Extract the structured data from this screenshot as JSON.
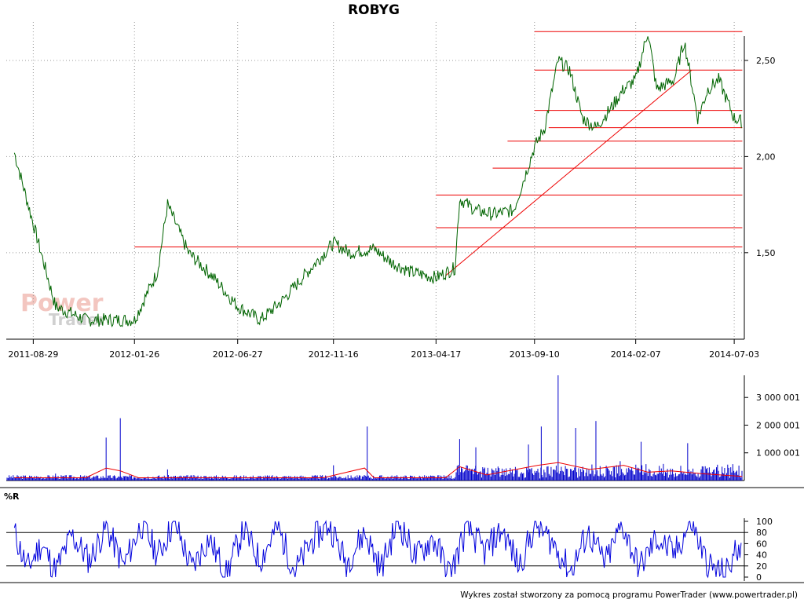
{
  "chart_data": [
    {
      "type": "line",
      "panel": "price",
      "title": "ROBYG",
      "y_tick_labels": [
        "2,50",
        "2,00",
        "1,50"
      ],
      "y_ticks": [
        2.5,
        2.0,
        1.5
      ],
      "ylim": [
        1.05,
        2.7
      ],
      "x_tick_labels": [
        "2011-08-29",
        "2012-01-26",
        "2012-06-27",
        "2012-11-16",
        "2013-04-17",
        "2013-09-10",
        "2014-02-07",
        "2014-07-03"
      ],
      "grid": true,
      "series": [
        {
          "x": [
            "2011-08-01",
            "2011-08-29",
            "2011-10-01",
            "2011-11-15",
            "2012-01-26",
            "2012-02-29",
            "2012-03-15",
            "2012-04-15",
            "2012-05-20",
            "2012-06-27",
            "2012-07-31",
            "2012-09-01",
            "2012-10-01",
            "2012-11-16",
            "2012-12-10",
            "2013-01-15",
            "2013-02-10",
            "2013-03-10",
            "2013-04-17",
            "2013-05-15",
            "2013-05-22",
            "2013-06-15",
            "2013-07-10",
            "2013-08-10",
            "2013-09-10",
            "2013-09-25",
            "2013-10-15",
            "2013-11-01",
            "2013-11-20",
            "2013-12-10",
            "2014-01-01",
            "2014-01-20",
            "2014-02-07",
            "2014-02-25",
            "2014-03-10",
            "2014-04-05",
            "2014-04-20",
            "2014-05-10",
            "2014-05-25",
            "2014-06-10",
            "2014-07-03",
            "2014-07-15"
          ],
          "values": [
            2.02,
            1.65,
            1.22,
            1.15,
            1.15,
            1.4,
            1.75,
            1.5,
            1.38,
            1.22,
            1.15,
            1.25,
            1.37,
            1.55,
            1.5,
            1.52,
            1.45,
            1.4,
            1.37,
            1.42,
            1.78,
            1.72,
            1.7,
            1.72,
            2.05,
            2.15,
            2.5,
            2.45,
            2.2,
            2.15,
            2.25,
            2.35,
            2.4,
            2.65,
            2.35,
            2.4,
            2.6,
            2.2,
            2.35,
            2.4,
            2.2,
            2.18
          ]
        }
      ],
      "horizontal_levels": [
        {
          "value": 2.65,
          "from": "2013-09-10",
          "to": "2014-07-15"
        },
        {
          "value": 2.45,
          "from": "2013-09-10",
          "to": "2014-07-15"
        },
        {
          "value": 2.24,
          "from": "2013-09-10",
          "to": "2014-07-15"
        },
        {
          "value": 2.15,
          "from": "2013-10-01",
          "to": "2014-07-15"
        },
        {
          "value": 2.08,
          "from": "2013-08-01",
          "to": "2014-07-15"
        },
        {
          "value": 1.94,
          "from": "2013-07-10",
          "to": "2014-07-15"
        },
        {
          "value": 1.8,
          "from": "2013-04-17",
          "to": "2014-07-15"
        },
        {
          "value": 1.63,
          "from": "2013-04-17",
          "to": "2014-07-15"
        },
        {
          "value": 1.53,
          "from": "2012-01-26",
          "to": "2014-07-15"
        }
      ],
      "trend_line": {
        "from": [
          "2013-05-01",
          1.38
        ],
        "to": [
          "2014-05-01",
          2.45
        ]
      }
    },
    {
      "type": "bar",
      "panel": "volume",
      "y_tick_labels": [
        "3 000 001",
        "2 000 001",
        "1 000 001"
      ],
      "y_ticks": [
        3000001,
        2000001,
        1000001
      ],
      "ylim": [
        0,
        3800000
      ],
      "series": [
        {
          "x": [
            "2011-10-01",
            "2011-12-15",
            "2012-01-05",
            "2012-03-15",
            "2012-05-20",
            "2012-11-16",
            "2013-01-05",
            "2013-05-22",
            "2013-06-15",
            "2013-09-01",
            "2013-09-20",
            "2013-10-15",
            "2013-11-10",
            "2013-12-10",
            "2014-01-15",
            "2014-02-15",
            "2014-03-20",
            "2014-04-25",
            "2014-06-15"
          ],
          "values": [
            250000,
            1550000,
            2250000,
            400000,
            100000,
            550000,
            1950000,
            1500000,
            1200000,
            1300000,
            1950000,
            3800000,
            1900000,
            2150000,
            700000,
            1400000,
            600000,
            1350000,
            500000
          ]
        },
        {
          "x": [
            "2011-08-01",
            "2011-11-15",
            "2011-12-15",
            "2012-01-05",
            "2012-02-01",
            "2012-05-01",
            "2012-11-01",
            "2013-01-01",
            "2013-01-15",
            "2013-05-01",
            "2013-05-22",
            "2013-07-01",
            "2013-09-15",
            "2013-10-15",
            "2013-12-01",
            "2014-01-20",
            "2014-02-25",
            "2014-04-01",
            "2014-05-15",
            "2014-07-15"
          ],
          "values": [
            100000,
            100000,
            450000,
            350000,
            100000,
            100000,
            100000,
            450000,
            100000,
            100000,
            500000,
            200000,
            550000,
            650000,
            400000,
            550000,
            300000,
            350000,
            250000,
            150000
          ]
        }
      ]
    },
    {
      "type": "line",
      "panel": "oscillator",
      "title": "%R",
      "y_tick_labels": [
        "100",
        "80",
        "60",
        "40",
        "20",
        "0"
      ],
      "y_ticks": [
        100,
        80,
        60,
        40,
        20,
        0
      ],
      "ylim": [
        0,
        100
      ],
      "reference_levels": [
        80,
        20
      ],
      "series": [
        {
          "x": [
            "2011-08-01",
            "2011-08-20",
            "2011-09-10",
            "2011-10-01",
            "2011-10-25",
            "2011-11-20",
            "2011-12-15",
            "2012-01-10",
            "2012-02-05",
            "2012-03-01",
            "2012-03-25",
            "2012-04-20",
            "2012-05-15",
            "2012-06-10",
            "2012-07-05",
            "2012-07-30",
            "2012-08-25",
            "2012-09-20",
            "2012-10-15",
            "2012-11-10",
            "2012-12-05",
            "2013-01-01",
            "2013-01-25",
            "2013-02-20",
            "2013-03-18",
            "2013-04-12",
            "2013-05-08",
            "2013-06-02",
            "2013-06-28",
            "2013-07-24",
            "2013-08-18",
            "2013-09-12",
            "2013-10-08",
            "2013-11-02",
            "2013-11-28",
            "2013-12-24",
            "2014-01-18",
            "2014-02-12",
            "2014-03-10",
            "2014-04-05",
            "2014-04-30",
            "2014-05-25",
            "2014-06-20",
            "2014-07-15"
          ],
          "values": [
            80,
            15,
            60,
            10,
            75,
            30,
            90,
            20,
            95,
            40,
            100,
            15,
            70,
            5,
            85,
            30,
            90,
            10,
            65,
            95,
            25,
            80,
            15,
            100,
            35,
            70,
            5,
            90,
            45,
            85,
            20,
            95,
            60,
            10,
            80,
            25,
            95,
            15,
            70,
            40,
            100,
            20,
            5,
            70
          ]
        }
      ]
    }
  ],
  "credit": "Wykres został stworzony za pomocą programu PowerTrader (www.powertrader.pl)",
  "watermark": {
    "line1": "Power",
    "line2": "Trader"
  },
  "colors": {
    "price": "#006400",
    "levels": "#ee0000",
    "volume": "#0000cc",
    "volume_avg": "#ee0000",
    "oscillator": "#0000dd",
    "grid": "#999999"
  }
}
